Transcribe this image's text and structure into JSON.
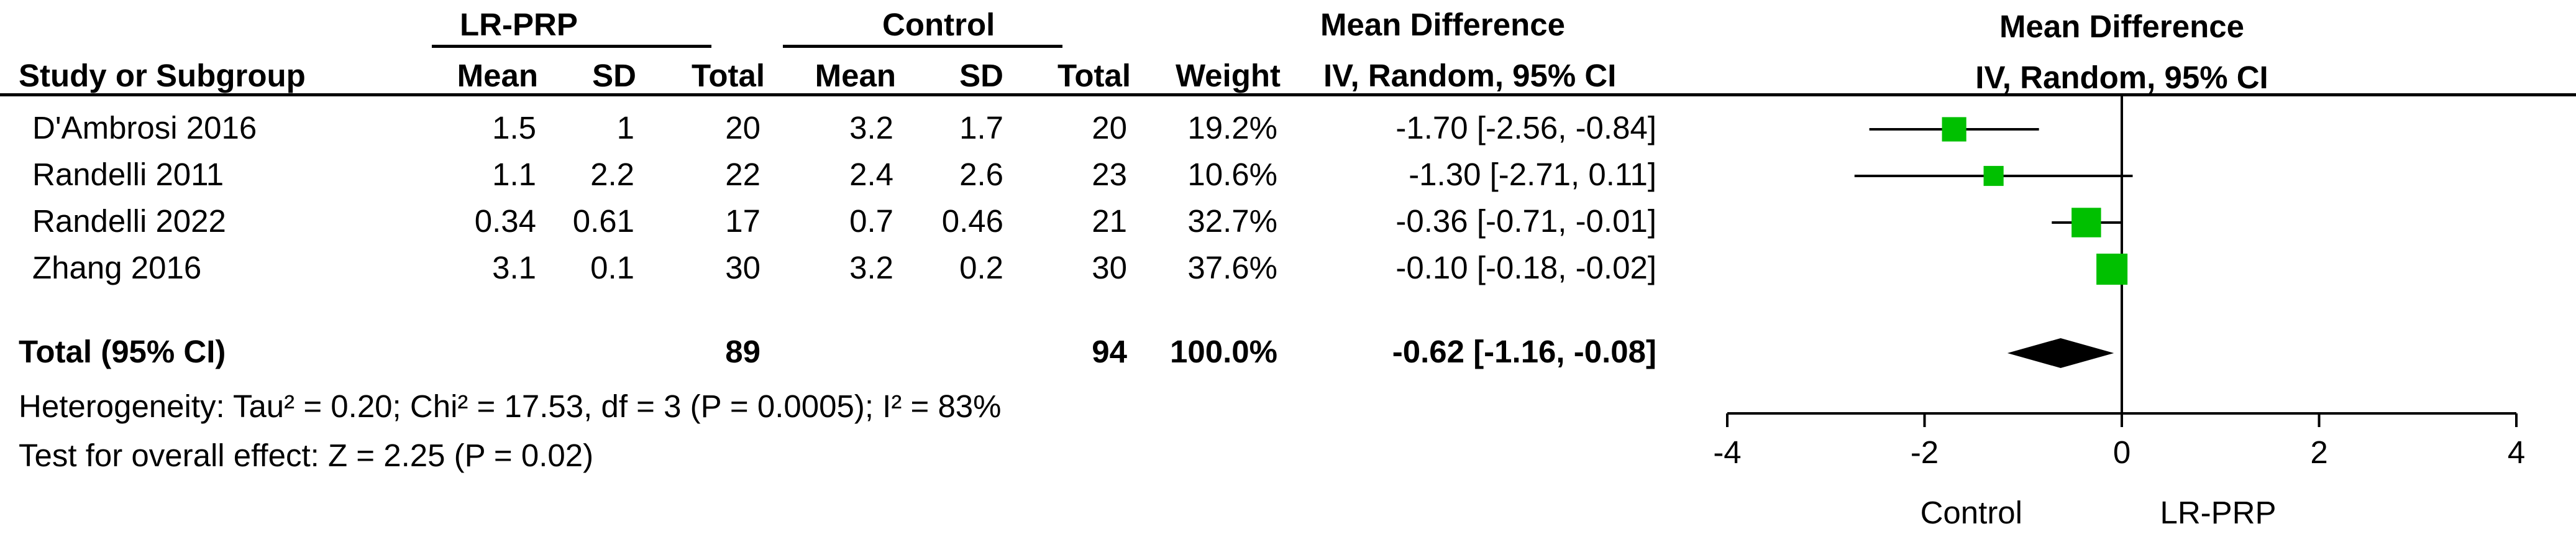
{
  "headers": {
    "group1": "LR-PRP",
    "group2": "Control",
    "md_table": "Mean Difference",
    "md_plot": "Mean Difference",
    "study": "Study or Subgroup",
    "mean1": "Mean",
    "sd1": "SD",
    "total1": "Total",
    "mean2": "Mean",
    "sd2": "SD",
    "total2": "Total",
    "weight": "Weight",
    "method_table": "IV, Random, 95% CI",
    "method_plot": "IV, Random, 95% CI"
  },
  "studies": [
    {
      "name": "D'Ambrosi 2016",
      "mean1": "1.5",
      "sd1": "1",
      "total1": "20",
      "mean2": "3.2",
      "sd2": "1.7",
      "total2": "20",
      "weight": "19.2%",
      "ci": "-1.70 [-2.56, -0.84]"
    },
    {
      "name": "Randelli 2011",
      "mean1": "1.1",
      "sd1": "2.2",
      "total1": "22",
      "mean2": "2.4",
      "sd2": "2.6",
      "total2": "23",
      "weight": "10.6%",
      "ci": "-1.30 [-2.71, 0.11]"
    },
    {
      "name": "Randelli 2022",
      "mean1": "0.34",
      "sd1": "0.61",
      "total1": "17",
      "mean2": "0.7",
      "sd2": "0.46",
      "total2": "21",
      "weight": "32.7%",
      "ci": "-0.36 [-0.71, -0.01]"
    },
    {
      "name": "Zhang 2016",
      "mean1": "3.1",
      "sd1": "0.1",
      "total1": "30",
      "mean2": "3.2",
      "sd2": "0.2",
      "total2": "30",
      "weight": "37.6%",
      "ci": "-0.10 [-0.18, -0.02]"
    }
  ],
  "total": {
    "name": "Total (95% CI)",
    "total1": "89",
    "total2": "94",
    "weight": "100.0%",
    "ci": "-0.62 [-1.16, -0.08]"
  },
  "heterogeneity": "Heterogeneity: Tau² = 0.20; Chi² = 17.53, df = 3 (P = 0.0005); I² = 83%",
  "overall_effect": "Test for overall effect: Z = 2.25 (P = 0.02)",
  "axis": {
    "favours_left": "Control",
    "favours_right": "LR-PRP"
  },
  "colors": {
    "square": "#00c000",
    "diamond": "#000000"
  },
  "chart_data": {
    "type": "forest",
    "xlim": [
      -4,
      4
    ],
    "xticks": [
      -4,
      -2,
      0,
      2,
      4
    ],
    "xtick_labels": [
      "-4",
      "-2",
      "0",
      "2",
      "4"
    ],
    "studies": [
      {
        "label": "D'Ambrosi 2016",
        "estimate": -1.7,
        "lower": -2.56,
        "upper": -0.84,
        "weight": 19.2
      },
      {
        "label": "Randelli 2011",
        "estimate": -1.3,
        "lower": -2.71,
        "upper": 0.11,
        "weight": 10.6
      },
      {
        "label": "Randelli 2022",
        "estimate": -0.36,
        "lower": -0.71,
        "upper": -0.01,
        "weight": 32.7
      },
      {
        "label": "Zhang 2016",
        "estimate": -0.1,
        "lower": -0.18,
        "upper": -0.02,
        "weight": 37.6
      }
    ],
    "pooled": {
      "label": "Total (95% CI)",
      "estimate": -0.62,
      "lower": -1.16,
      "upper": -0.08
    }
  }
}
